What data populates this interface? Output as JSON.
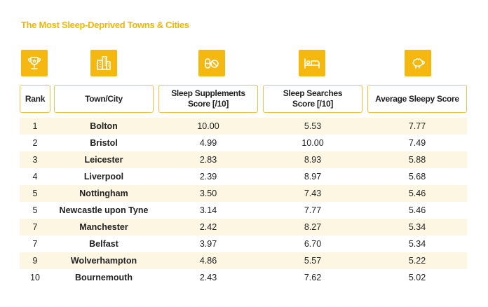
{
  "title": "The Most Sleep-Deprived Towns & Cities",
  "colors": {
    "accent": "#f5b810",
    "title": "#f2b705",
    "header_border": "#f5c040",
    "row_shade": "#fdf6e3"
  },
  "icons": [
    "trophy-icon",
    "city-buildings-icon",
    "pills-icon",
    "bed-icon",
    "sheep-icon"
  ],
  "chart_data": {
    "type": "table",
    "columns": [
      "Rank",
      "Town/City",
      "Sleep Supplements Score [/10]",
      "Sleep Searches Score [/10]",
      "Average Sleepy Score"
    ],
    "header_lines": [
      [
        "Rank"
      ],
      [
        "Town/City"
      ],
      [
        "Sleep Supplements",
        "Score [/10]"
      ],
      [
        "Sleep Searches",
        "Score [/10]"
      ],
      [
        "Average Sleepy Score"
      ]
    ],
    "rows": [
      {
        "rank": "1",
        "town": "Bolton",
        "supplements": "10.00",
        "searches": "5.53",
        "average": "7.77"
      },
      {
        "rank": "2",
        "town": "Bristol",
        "supplements": "4.99",
        "searches": "10.00",
        "average": "7.49"
      },
      {
        "rank": "3",
        "town": "Leicester",
        "supplements": "2.83",
        "searches": "8.93",
        "average": "5.88"
      },
      {
        "rank": "4",
        "town": "Liverpool",
        "supplements": "2.39",
        "searches": "8.97",
        "average": "5.68"
      },
      {
        "rank": "5",
        "town": "Nottingham",
        "supplements": "3.50",
        "searches": "7.43",
        "average": "5.46"
      },
      {
        "rank": "5",
        "town": "Newcastle upon Tyne",
        "supplements": "3.14",
        "searches": "7.77",
        "average": "5.46"
      },
      {
        "rank": "7",
        "town": "Manchester",
        "supplements": "2.42",
        "searches": "8.27",
        "average": "5.34"
      },
      {
        "rank": "7",
        "town": "Belfast",
        "supplements": "3.97",
        "searches": "6.70",
        "average": "5.34"
      },
      {
        "rank": "9",
        "town": "Wolverhampton",
        "supplements": "4.86",
        "searches": "5.57",
        "average": "5.22"
      },
      {
        "rank": "10",
        "town": "Bournemouth",
        "supplements": "2.43",
        "searches": "7.62",
        "average": "5.02"
      }
    ]
  }
}
